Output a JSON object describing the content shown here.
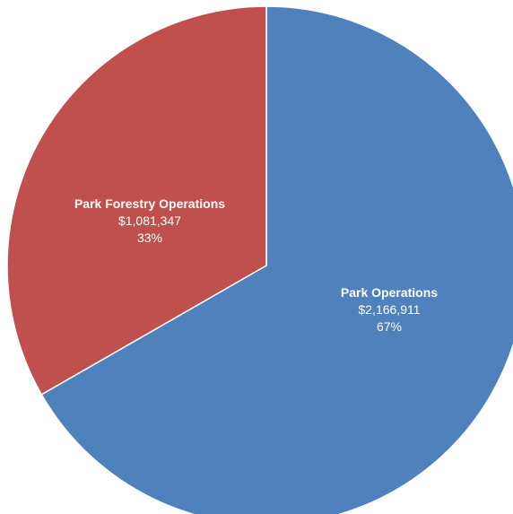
{
  "chart_data": {
    "type": "pie",
    "title": "",
    "slices": [
      {
        "label": "Park Operations",
        "value": 2166911,
        "value_text": "$2,166,911",
        "percent": 67,
        "percent_text": "67%",
        "color": "#4F81BD"
      },
      {
        "label": "Park Forestry Operations",
        "value": 1081347,
        "value_text": "$1,081,347",
        "percent": 33,
        "percent_text": "33%",
        "color": "#C0504D"
      }
    ],
    "start_angle": "12 o'clock",
    "direction": "clockwise",
    "legend": "none",
    "data_labels": "inside"
  }
}
